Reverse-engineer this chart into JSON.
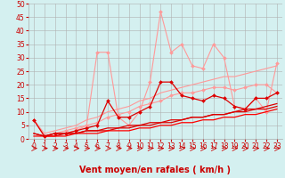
{
  "xlabel": "Vent moyen/en rafales ( km/h )",
  "bg_color": "#d4f0f0",
  "grid_color": "#b0b0b0",
  "x_ticks": [
    0,
    1,
    2,
    3,
    4,
    5,
    6,
    7,
    8,
    9,
    10,
    11,
    12,
    13,
    14,
    15,
    16,
    17,
    18,
    19,
    20,
    21,
    22,
    23
  ],
  "y_ticks": [
    0,
    5,
    10,
    15,
    20,
    25,
    30,
    35,
    40,
    45,
    50
  ],
  "xlim": [
    -0.5,
    23.5
  ],
  "ylim": [
    0,
    50
  ],
  "lines": [
    {
      "x": [
        0,
        1,
        2,
        3,
        4,
        5,
        6,
        7,
        8,
        9,
        10,
        11,
        12,
        13,
        14,
        15,
        16,
        17,
        18,
        19,
        20,
        21,
        22,
        23
      ],
      "y": [
        7,
        1,
        2,
        2,
        3,
        5,
        32,
        32,
        8,
        5,
        10,
        21,
        47,
        32,
        35,
        27,
        26,
        35,
        30,
        12,
        11,
        15,
        10,
        28
      ],
      "color": "#ff9999",
      "marker": "D",
      "lw": 0.8,
      "ms": 2.0,
      "zorder": 3
    },
    {
      "x": [
        0,
        1,
        2,
        3,
        4,
        5,
        6,
        7,
        8,
        9,
        10,
        11,
        12,
        13,
        14,
        15,
        16,
        17,
        18,
        19,
        20,
        21,
        22,
        23
      ],
      "y": [
        7,
        1,
        2,
        3,
        4,
        5,
        6,
        8,
        9,
        10,
        12,
        13,
        14,
        16,
        17,
        17,
        18,
        19,
        19,
        18,
        19,
        20,
        20,
        17
      ],
      "color": "#ff9999",
      "marker": "D",
      "lw": 0.8,
      "ms": 2.0,
      "zorder": 3
    },
    {
      "x": [
        0,
        1,
        2,
        3,
        4,
        5,
        6,
        7,
        8,
        9,
        10,
        11,
        12,
        13,
        14,
        15,
        16,
        17,
        18,
        19,
        20,
        21,
        22,
        23
      ],
      "y": [
        7,
        2,
        3,
        4,
        5,
        7,
        8,
        10,
        11,
        12,
        14,
        15,
        17,
        18,
        19,
        20,
        21,
        22,
        23,
        23,
        24,
        25,
        26,
        27
      ],
      "color": "#ff9999",
      "marker": null,
      "lw": 0.8,
      "ms": 0,
      "zorder": 2
    },
    {
      "x": [
        0,
        1,
        2,
        3,
        4,
        5,
        6,
        7,
        8,
        9,
        10,
        11,
        12,
        13,
        14,
        15,
        16,
        17,
        18,
        19,
        20,
        21,
        22,
        23
      ],
      "y": [
        7,
        1,
        2,
        2,
        3,
        4,
        5,
        14,
        8,
        8,
        10,
        12,
        21,
        21,
        16,
        15,
        14,
        16,
        15,
        12,
        11,
        15,
        15,
        17
      ],
      "color": "#dd0000",
      "marker": "D",
      "lw": 0.9,
      "ms": 2.0,
      "zorder": 5
    },
    {
      "x": [
        0,
        1,
        2,
        3,
        4,
        5,
        6,
        7,
        8,
        9,
        10,
        11,
        12,
        13,
        14,
        15,
        16,
        17,
        18,
        19,
        20,
        21,
        22,
        23
      ],
      "y": [
        2,
        1,
        1,
        2,
        2,
        3,
        3,
        3,
        4,
        4,
        5,
        5,
        6,
        6,
        7,
        8,
        8,
        9,
        9,
        10,
        11,
        11,
        12,
        13
      ],
      "color": "#dd0000",
      "marker": null,
      "lw": 0.9,
      "ms": 0,
      "zorder": 4
    },
    {
      "x": [
        0,
        1,
        2,
        3,
        4,
        5,
        6,
        7,
        8,
        9,
        10,
        11,
        12,
        13,
        14,
        15,
        16,
        17,
        18,
        19,
        20,
        21,
        22,
        23
      ],
      "y": [
        1,
        1,
        1,
        1,
        2,
        2,
        2,
        3,
        3,
        3,
        4,
        4,
        5,
        5,
        6,
        6,
        7,
        7,
        8,
        8,
        9,
        9,
        10,
        11
      ],
      "color": "#ff0000",
      "marker": null,
      "lw": 0.9,
      "ms": 0,
      "zorder": 4
    },
    {
      "x": [
        0,
        1,
        2,
        3,
        4,
        5,
        6,
        7,
        8,
        9,
        10,
        11,
        12,
        13,
        14,
        15,
        16,
        17,
        18,
        19,
        20,
        21,
        22,
        23
      ],
      "y": [
        2,
        1,
        2,
        2,
        2,
        3,
        3,
        4,
        4,
        5,
        5,
        6,
        6,
        7,
        7,
        8,
        8,
        9,
        9,
        10,
        10,
        11,
        11,
        12
      ],
      "color": "#dd0000",
      "marker": null,
      "lw": 0.9,
      "ms": 0,
      "zorder": 4
    }
  ],
  "arrow_color": "#cc0000",
  "tick_fontsize": 5.5,
  "xlabel_fontsize": 7
}
